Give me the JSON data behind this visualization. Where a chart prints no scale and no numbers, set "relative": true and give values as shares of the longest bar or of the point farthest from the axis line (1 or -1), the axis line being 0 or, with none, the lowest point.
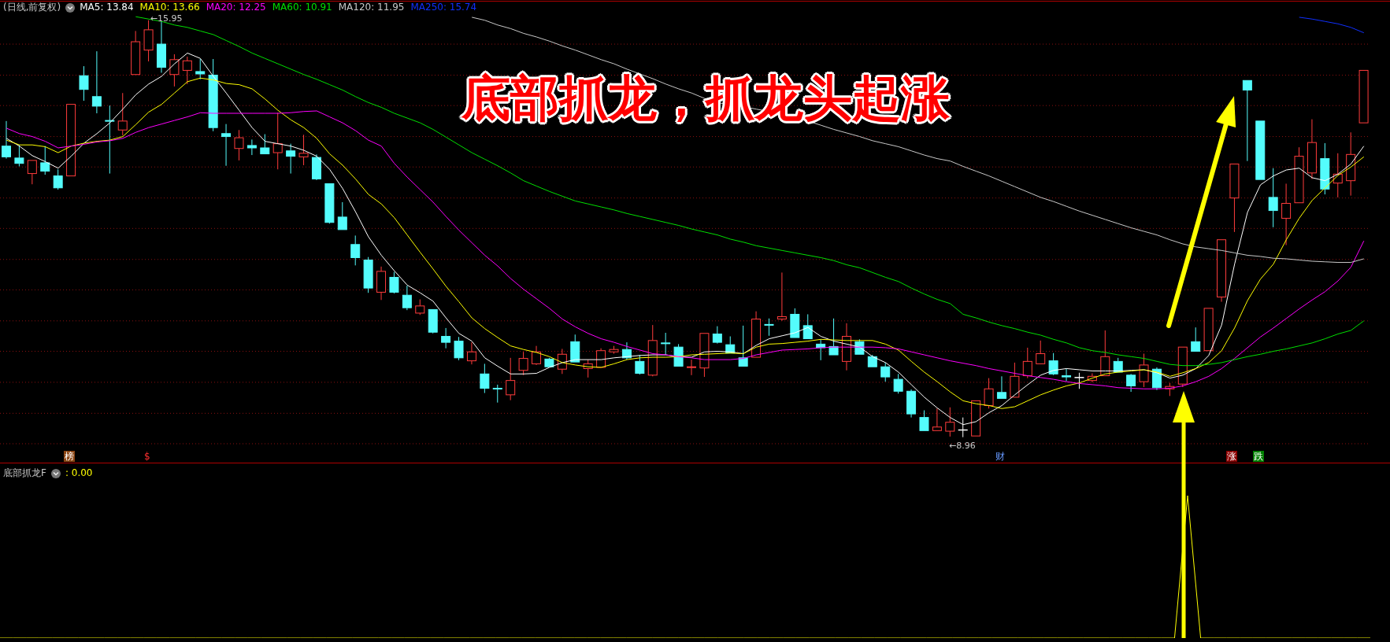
{
  "chart_data": [
    {
      "type": "candlestick",
      "title": "(日线,前复权)",
      "legend": "top left",
      "grid": "y",
      "categories": [
        null,
        null,
        null,
        null,
        null,
        null,
        null,
        null,
        null,
        null,
        null,
        null,
        null,
        null,
        null,
        null,
        null,
        null,
        null,
        null,
        null,
        null,
        null,
        null,
        null,
        null,
        null,
        null,
        null,
        null,
        null,
        null,
        null,
        null,
        null,
        null,
        null,
        null,
        null,
        null,
        null,
        null,
        null,
        null,
        null,
        null,
        null,
        null,
        null,
        null,
        null,
        null,
        null,
        null,
        null,
        null,
        null,
        null,
        null,
        null,
        null,
        null,
        null,
        null,
        null,
        null,
        null,
        null,
        null,
        null,
        null,
        null,
        null,
        null,
        null,
        null,
        null,
        null,
        null,
        null,
        null,
        null,
        null,
        null,
        null,
        null,
        null,
        null,
        null,
        null,
        null,
        null,
        null,
        null,
        null,
        null,
        null,
        null,
        null,
        null,
        null,
        null,
        null,
        null,
        null,
        null
      ],
      "ylim": [
        8.52,
        16.25
      ],
      "yticks": [
        {
          "value": 15.55,
          "label": null
        },
        {
          "value": 15.03,
          "label": null
        },
        {
          "value": 14.52,
          "label": null
        },
        {
          "value": 14.0,
          "label": null
        },
        {
          "value": 13.49,
          "label": null
        },
        {
          "value": 12.97,
          "label": null
        },
        {
          "value": 12.46,
          "label": null
        },
        {
          "value": 11.94,
          "label": null
        },
        {
          "value": 11.43,
          "label": null
        },
        {
          "value": 10.91,
          "label": null
        },
        {
          "value": 10.4,
          "label": null
        },
        {
          "value": 9.88,
          "label": null
        },
        {
          "value": 9.36,
          "label": null
        },
        {
          "value": 8.85,
          "label": null
        }
      ],
      "ohlc": [
        [
          13.84,
          14.26,
          13.63,
          13.66
        ],
        [
          13.64,
          13.86,
          13.5,
          13.55
        ],
        [
          13.38,
          13.6,
          13.2,
          13.6
        ],
        [
          13.56,
          13.84,
          13.36,
          13.42
        ],
        [
          13.34,
          13.45,
          13.11,
          13.14
        ],
        [
          13.34,
          14.54,
          13.34,
          14.54
        ],
        [
          15.02,
          15.18,
          14.6,
          14.79
        ],
        [
          14.67,
          15.43,
          14.39,
          14.51
        ],
        [
          14.27,
          14.52,
          13.38,
          14.26
        ],
        [
          14.11,
          14.73,
          14.02,
          14.26
        ],
        [
          15.04,
          15.77,
          15.04,
          15.59
        ],
        [
          15.45,
          15.95,
          15.26,
          15.79
        ],
        [
          15.55,
          15.93,
          15.07,
          15.16
        ],
        [
          15.04,
          15.38,
          14.84,
          15.29
        ],
        [
          15.11,
          15.34,
          14.88,
          15.27
        ],
        [
          15.09,
          15.3,
          14.96,
          15.05
        ],
        [
          15.03,
          15.3,
          14.09,
          14.15
        ],
        [
          14.05,
          14.21,
          13.51,
          14.0
        ],
        [
          13.8,
          14.11,
          13.6,
          13.98
        ],
        [
          13.85,
          13.95,
          13.69,
          13.81
        ],
        [
          13.81,
          14.04,
          13.7,
          13.71
        ],
        [
          13.73,
          14.4,
          13.45,
          13.88
        ],
        [
          13.76,
          13.88,
          13.38,
          13.67
        ],
        [
          13.66,
          14.03,
          13.52,
          13.72
        ],
        [
          13.65,
          13.7,
          13.27,
          13.29
        ],
        [
          13.21,
          13.22,
          12.54,
          12.56
        ],
        [
          12.65,
          12.9,
          12.44,
          12.44
        ],
        [
          12.19,
          12.34,
          11.84,
          11.97
        ],
        [
          11.93,
          11.98,
          11.38,
          11.46
        ],
        [
          11.39,
          11.82,
          11.26,
          11.74
        ],
        [
          11.64,
          11.73,
          11.37,
          11.39
        ],
        [
          11.34,
          11.5,
          11.09,
          11.13
        ],
        [
          11.04,
          11.27,
          11.01,
          11.16
        ],
        [
          11.1,
          11.11,
          10.7,
          10.72
        ],
        [
          10.65,
          10.79,
          10.45,
          10.55
        ],
        [
          10.57,
          10.64,
          10.25,
          10.29
        ],
        [
          10.24,
          10.55,
          10.18,
          10.39
        ],
        [
          10.02,
          10.19,
          9.7,
          9.78
        ],
        [
          9.78,
          9.84,
          9.54,
          9.77
        ],
        [
          9.67,
          10.29,
          9.58,
          9.91
        ],
        [
          10.08,
          10.39,
          10.0,
          10.28
        ],
        [
          10.19,
          10.49,
          10.17,
          10.39
        ],
        [
          10.27,
          10.29,
          10.13,
          10.14
        ],
        [
          10.1,
          10.44,
          10.02,
          10.35
        ],
        [
          10.56,
          10.68,
          10.21,
          10.22
        ],
        [
          10.11,
          10.26,
          9.96,
          10.19
        ],
        [
          10.13,
          10.45,
          10.12,
          10.41
        ],
        [
          10.39,
          10.49,
          10.36,
          10.43
        ],
        [
          10.43,
          10.55,
          10.26,
          10.29
        ],
        [
          10.23,
          10.34,
          10.01,
          10.03
        ],
        [
          10.0,
          10.84,
          9.98,
          10.58
        ],
        [
          10.54,
          10.71,
          10.34,
          10.53
        ],
        [
          10.47,
          10.52,
          10.14,
          10.15
        ],
        [
          10.13,
          10.26,
          10.0,
          10.14
        ],
        [
          10.12,
          10.7,
          9.97,
          10.7
        ],
        [
          10.69,
          10.82,
          10.53,
          10.55
        ],
        [
          10.51,
          10.65,
          10.36,
          10.37
        ],
        [
          10.29,
          10.83,
          10.15,
          10.15
        ],
        [
          10.3,
          11.07,
          10.29,
          10.94
        ],
        [
          10.85,
          10.95,
          10.66,
          10.84
        ],
        [
          10.94,
          11.72,
          10.91,
          10.98
        ],
        [
          11.02,
          11.12,
          10.63,
          10.63
        ],
        [
          10.83,
          11.02,
          10.6,
          10.61
        ],
        [
          10.52,
          10.6,
          10.25,
          10.46
        ],
        [
          10.48,
          10.95,
          10.34,
          10.34
        ],
        [
          10.23,
          10.87,
          10.08,
          10.65
        ],
        [
          10.56,
          10.6,
          10.34,
          10.35
        ],
        [
          10.31,
          10.34,
          10.13,
          10.14
        ],
        [
          10.14,
          10.21,
          9.89,
          9.97
        ],
        [
          9.93,
          10.02,
          9.69,
          9.73
        ],
        [
          9.73,
          9.76,
          9.29,
          9.35
        ],
        [
          9.29,
          9.41,
          9.06,
          9.07
        ],
        [
          9.07,
          9.44,
          9.06,
          9.13
        ],
        [
          9.06,
          9.46,
          8.97,
          9.21
        ],
        [
          9.08,
          9.29,
          8.96,
          9.08
        ],
        [
          8.98,
          9.58,
          8.97,
          9.57
        ],
        [
          9.49,
          9.95,
          9.44,
          9.77
        ],
        [
          9.71,
          9.98,
          9.6,
          9.61
        ],
        [
          9.63,
          10.21,
          9.62,
          9.98
        ],
        [
          9.99,
          10.46,
          9.95,
          10.23
        ],
        [
          10.19,
          10.58,
          10.18,
          10.36
        ],
        [
          10.24,
          10.37,
          10.0,
          10.02
        ],
        [
          9.99,
          10.11,
          9.9,
          9.97
        ],
        [
          9.96,
          10.04,
          9.77,
          9.96
        ],
        [
          9.91,
          10.03,
          9.88,
          9.98
        ],
        [
          9.99,
          10.75,
          9.98,
          10.31
        ],
        [
          10.23,
          10.29,
          10.04,
          10.05
        ],
        [
          10.0,
          10.02,
          9.72,
          9.82
        ],
        [
          9.89,
          10.36,
          9.8,
          10.17
        ],
        [
          10.1,
          10.13,
          9.75,
          9.79
        ],
        [
          9.77,
          9.87,
          9.65,
          9.81
        ],
        [
          9.85,
          10.48,
          9.8,
          10.47
        ],
        [
          10.56,
          10.8,
          10.39,
          10.4
        ],
        [
          10.41,
          11.12,
          10.4,
          11.12
        ],
        [
          11.31,
          12.28,
          11.23,
          12.27
        ],
        [
          12.97,
          13.54,
          12.4,
          13.54
        ],
        [
          14.94,
          14.94,
          13.59,
          14.78
        ],
        [
          14.26,
          14.26,
          13.28,
          13.28
        ],
        [
          12.98,
          13.47,
          12.48,
          12.76
        ],
        [
          12.63,
          13.21,
          12.18,
          12.88
        ],
        [
          12.89,
          13.82,
          12.88,
          13.67
        ],
        [
          13.39,
          14.29,
          13.29,
          13.9
        ],
        [
          13.63,
          13.89,
          13.03,
          13.12
        ],
        [
          13.22,
          13.72,
          12.98,
          13.37
        ],
        [
          13.26,
          14.07,
          13.01,
          13.7
        ],
        [
          14.23,
          15.11,
          14.23,
          15.11
        ]
      ],
      "colors": [
        "#54fcfc",
        "#54fcfc",
        "#ff3c3c",
        "#54fcfc",
        "#54fcfc",
        "#ff3c3c",
        "#54fcfc",
        "#54fcfc",
        "#54fcfc",
        "#ff3c3c",
        "#ff3c3c",
        "#ff3c3c",
        "#54fcfc",
        "#ff3c3c",
        "#ff3c3c",
        "#54fcfc",
        "#54fcfc",
        "#54fcfc",
        "#ff3c3c",
        "#54fcfc",
        "#54fcfc",
        "#ff3c3c",
        "#54fcfc",
        "#ff3c3c",
        "#54fcfc",
        "#54fcfc",
        "#54fcfc",
        "#54fcfc",
        "#54fcfc",
        "#ff3c3c",
        "#54fcfc",
        "#54fcfc",
        "#ff3c3c",
        "#54fcfc",
        "#54fcfc",
        "#54fcfc",
        "#ff3c3c",
        "#54fcfc",
        "#54fcfc",
        "#ff3c3c",
        "#ff3c3c",
        "#ff3c3c",
        "#54fcfc",
        "#ff3c3c",
        "#54fcfc",
        "#ff3c3c",
        "#ff3c3c",
        "#ff3c3c",
        "#54fcfc",
        "#54fcfc",
        "#ff3c3c",
        "#54fcfc",
        "#54fcfc",
        "#ff3c3c",
        "#ff3c3c",
        "#54fcfc",
        "#54fcfc",
        "#54fcfc",
        "#ff3c3c",
        "#54fcfc",
        "#ff3c3c",
        "#54fcfc",
        "#54fcfc",
        "#54fcfc",
        "#54fcfc",
        "#ff3c3c",
        "#54fcfc",
        "#54fcfc",
        "#54fcfc",
        "#54fcfc",
        "#54fcfc",
        "#54fcfc",
        "#ff3c3c",
        "#ff3c3c",
        "#ffffff",
        "#ff3c3c",
        "#ff3c3c",
        "#54fcfc",
        "#ff3c3c",
        "#ff3c3c",
        "#ff3c3c",
        "#54fcfc",
        "#54fcfc",
        "#ffffff",
        "#ff3c3c",
        "#ff3c3c",
        "#54fcfc",
        "#54fcfc",
        "#ff3c3c",
        "#54fcfc",
        "#ff3c3c",
        "#ff3c3c",
        "#54fcfc",
        "#ff3c3c",
        "#ff3c3c",
        "#ff3c3c",
        "#54fcfc",
        "#54fcfc",
        "#54fcfc",
        "#ff3c3c",
        "#ff3c3c",
        "#ff3c3c",
        "#54fcfc",
        "#ff3c3c",
        "#ff3c3c",
        "#ff3c3c"
      ],
      "series": [
        {
          "name": "MA5: 13.84",
          "type": "line",
          "color": "#ffffff",
          "values": [
            13.97,
            13.84,
            13.68,
            13.58,
            13.47,
            13.67,
            13.89,
            14.05,
            14.23,
            14.46,
            14.7,
            14.88,
            15.01,
            15.22,
            15.4,
            15.31,
            15.01,
            14.73,
            14.44,
            14.15,
            13.92,
            13.88,
            13.84,
            13.77,
            13.67,
            13.45,
            13.13,
            12.74,
            12.32,
            12.01,
            11.75,
            11.51,
            11.38,
            11.24,
            10.96,
            10.7,
            10.57,
            10.29,
            10.15,
            10.02,
            10.02,
            10.03,
            10.13,
            10.21,
            10.26,
            10.26,
            10.26,
            10.29,
            10.31,
            10.33,
            10.34,
            10.34,
            10.31,
            10.3,
            10.39,
            10.4,
            10.39,
            10.36,
            10.5,
            10.61,
            10.66,
            10.71,
            10.8,
            10.65,
            10.57,
            10.52,
            10.47,
            10.31,
            10.21,
            10.05,
            9.84,
            9.63,
            9.45,
            9.29,
            9.17,
            9.22,
            9.37,
            9.49,
            9.67,
            9.84,
            10.0,
            10.08,
            10.11,
            10.09,
            10.07,
            10.07,
            10.07,
            10.08,
            10.09,
            10.04,
            9.95,
            10.0,
            10.11,
            10.33,
            10.84,
            11.86,
            12.73,
            13.19,
            13.34,
            13.44,
            13.47,
            13.31,
            13.26,
            13.37,
            13.54,
            13.84
          ]
        },
        {
          "name": "MA10: 13.66",
          "type": "line",
          "color": "#ffff00",
          "values": [
            13.94,
            13.86,
            13.86,
            13.83,
            13.73,
            13.84,
            13.89,
            13.92,
            13.94,
            14.0,
            14.2,
            14.41,
            14.54,
            14.73,
            14.92,
            14.98,
            14.95,
            14.89,
            14.87,
            14.8,
            14.63,
            14.44,
            14.28,
            14.15,
            13.97,
            13.71,
            13.52,
            13.29,
            13.03,
            12.87,
            12.64,
            12.35,
            12.06,
            11.78,
            11.49,
            11.23,
            10.96,
            10.78,
            10.63,
            10.49,
            10.43,
            10.38,
            10.31,
            10.21,
            10.17,
            10.14,
            10.13,
            10.19,
            10.26,
            10.29,
            10.3,
            10.3,
            10.31,
            10.34,
            10.35,
            10.36,
            10.37,
            10.36,
            10.47,
            10.52,
            10.53,
            10.55,
            10.57,
            10.6,
            10.59,
            10.58,
            10.58,
            10.58,
            10.52,
            10.42,
            10.23,
            10.05,
            9.89,
            9.72,
            9.57,
            9.52,
            9.49,
            9.44,
            9.47,
            9.57,
            9.67,
            9.75,
            9.82,
            9.87,
            9.95,
            10.02,
            10.05,
            10.07,
            10.09,
            10.05,
            9.98,
            10.04,
            10.11,
            10.21,
            10.41,
            10.79,
            11.25,
            11.61,
            11.86,
            12.27,
            12.63,
            12.93,
            13.14,
            13.35,
            13.49,
            13.66
          ]
        },
        {
          "name": "MA20: 12.25",
          "type": "line",
          "color": "#ff00ff",
          "values": [
            14.14,
            14.05,
            14.0,
            13.92,
            13.81,
            13.84,
            13.87,
            13.91,
            13.93,
            13.97,
            14.07,
            14.15,
            14.21,
            14.27,
            14.33,
            14.4,
            14.39,
            14.39,
            14.39,
            14.39,
            14.39,
            14.39,
            14.4,
            14.42,
            14.43,
            14.33,
            14.23,
            14.1,
            13.94,
            13.84,
            13.55,
            13.32,
            13.11,
            12.9,
            12.66,
            12.43,
            12.22,
            12.01,
            11.83,
            11.62,
            11.44,
            11.28,
            11.12,
            10.94,
            10.81,
            10.7,
            10.61,
            10.55,
            10.48,
            10.42,
            10.36,
            10.34,
            10.31,
            10.29,
            10.26,
            10.26,
            10.26,
            10.28,
            10.34,
            10.38,
            10.42,
            10.43,
            10.44,
            10.46,
            10.47,
            10.47,
            10.47,
            10.47,
            10.46,
            10.44,
            10.39,
            10.34,
            10.29,
            10.24,
            10.2,
            10.16,
            10.11,
            10.07,
            10.03,
            9.99,
            9.96,
            9.93,
            9.89,
            9.86,
            9.84,
            9.82,
            9.79,
            9.78,
            9.77,
            9.77,
            9.78,
            9.82,
            9.89,
            9.98,
            10.11,
            10.28,
            10.46,
            10.64,
            10.79,
            10.95,
            11.11,
            11.26,
            11.4,
            11.58,
            11.81,
            12.25
          ]
        },
        {
          "name": "MA60: 10.91",
          "type": "line",
          "color": "#00e000",
          "values": [
            null,
            null,
            null,
            null,
            null,
            null,
            null,
            null,
            null,
            null,
            16.01,
            15.97,
            15.93,
            15.87,
            15.83,
            15.77,
            15.71,
            15.61,
            15.51,
            15.4,
            15.31,
            15.22,
            15.13,
            15.04,
            14.96,
            14.87,
            14.78,
            14.67,
            14.57,
            14.49,
            14.39,
            14.31,
            14.23,
            14.12,
            13.99,
            13.86,
            13.73,
            13.62,
            13.51,
            13.39,
            13.26,
            13.17,
            13.08,
            13.0,
            12.92,
            12.87,
            12.82,
            12.77,
            12.71,
            12.66,
            12.61,
            12.56,
            12.51,
            12.45,
            12.4,
            12.35,
            12.28,
            12.23,
            12.17,
            12.13,
            12.09,
            12.05,
            12.01,
            11.97,
            11.92,
            11.85,
            11.8,
            11.72,
            11.64,
            11.57,
            11.46,
            11.36,
            11.27,
            11.2,
            11.02,
            10.96,
            10.89,
            10.83,
            10.78,
            10.72,
            10.67,
            10.6,
            10.54,
            10.46,
            10.41,
            10.38,
            10.34,
            10.31,
            10.28,
            10.23,
            10.18,
            10.16,
            10.16,
            10.18,
            10.21,
            10.26,
            10.31,
            10.35,
            10.4,
            10.44,
            10.49,
            10.54,
            10.61,
            10.69,
            10.75,
            10.91
          ]
        },
        {
          "name": "MA120: 11.95",
          "type": "line",
          "color": "#c8c8c8",
          "values": [
            null,
            null,
            null,
            null,
            null,
            null,
            null,
            null,
            null,
            null,
            null,
            null,
            null,
            null,
            null,
            null,
            null,
            null,
            null,
            null,
            null,
            null,
            null,
            null,
            null,
            null,
            null,
            null,
            null,
            null,
            null,
            null,
            null,
            null,
            null,
            null,
            16.0,
            15.95,
            15.87,
            15.81,
            15.73,
            15.67,
            15.6,
            15.52,
            15.45,
            15.37,
            15.29,
            15.22,
            15.13,
            15.05,
            14.97,
            14.88,
            14.8,
            14.73,
            14.64,
            14.57,
            14.53,
            14.5,
            14.46,
            14.42,
            14.37,
            14.32,
            14.26,
            14.19,
            14.12,
            14.06,
            14.0,
            13.93,
            13.88,
            13.83,
            13.76,
            13.69,
            13.63,
            13.59,
            13.5,
            13.42,
            13.34,
            13.25,
            13.16,
            13.07,
            12.98,
            12.91,
            12.83,
            12.75,
            12.68,
            12.61,
            12.54,
            12.47,
            12.41,
            12.35,
            12.27,
            12.2,
            12.15,
            12.12,
            12.09,
            12.05,
            12.01,
            11.99,
            11.96,
            11.95,
            11.93,
            11.91,
            11.9,
            11.89,
            11.89,
            11.95
          ]
        },
        {
          "name": "MA250: 15.74",
          "type": "line",
          "color": "#1030ff",
          "values": [
            null,
            null,
            null,
            null,
            null,
            null,
            null,
            null,
            null,
            null,
            null,
            null,
            null,
            null,
            null,
            null,
            null,
            null,
            null,
            null,
            null,
            null,
            null,
            null,
            null,
            null,
            null,
            null,
            null,
            null,
            null,
            null,
            null,
            null,
            null,
            null,
            null,
            null,
            null,
            null,
            null,
            null,
            null,
            null,
            null,
            null,
            null,
            null,
            null,
            null,
            null,
            null,
            null,
            null,
            null,
            null,
            null,
            null,
            null,
            null,
            null,
            null,
            null,
            null,
            null,
            null,
            null,
            null,
            null,
            null,
            null,
            null,
            null,
            null,
            null,
            null,
            null,
            null,
            null,
            null,
            null,
            null,
            null,
            null,
            null,
            null,
            null,
            null,
            null,
            null,
            null,
            null,
            null,
            null,
            null,
            null,
            null,
            null,
            null,
            null,
            16.0,
            15.97,
            15.93,
            15.89,
            15.83,
            15.74
          ]
        }
      ],
      "annotations": [
        "底部抓龙，抓龙头起涨",
        {
          "text": "←15.95",
          "y": 15.95
        },
        {
          "text": "←8.96",
          "y": 8.96
        },
        "榜",
        "$",
        "财",
        "涨",
        "跌"
      ]
    },
    {
      "type": "line",
      "title": "底部抓龙F",
      "relative": true,
      "categories": [
        null,
        null,
        null,
        null,
        null,
        null,
        null,
        null,
        null,
        null,
        null,
        null,
        null,
        null,
        null,
        null,
        null,
        null,
        null,
        null,
        null,
        null,
        null,
        null,
        null,
        null,
        null,
        null,
        null,
        null,
        null,
        null,
        null,
        null,
        null,
        null,
        null,
        null,
        null,
        null,
        null,
        null,
        null,
        null,
        null,
        null,
        null,
        null,
        null,
        null,
        null,
        null,
        null,
        null,
        null,
        null,
        null,
        null,
        null,
        null,
        null,
        null,
        null,
        null,
        null,
        null,
        null,
        null,
        null,
        null,
        null,
        null,
        null,
        null,
        null,
        null,
        null,
        null,
        null,
        null,
        null,
        null,
        null,
        null,
        null,
        null,
        null,
        null,
        null,
        null,
        null,
        null,
        null,
        null,
        null,
        null,
        null,
        null,
        null,
        null,
        null,
        null,
        null,
        null,
        null,
        null
      ],
      "series": [
        {
          "color": "#ffff00",
          "values": [
            0,
            0,
            0,
            0,
            0,
            0,
            0,
            0,
            0,
            0,
            0,
            0,
            0,
            0,
            0,
            0,
            0,
            0,
            0,
            0,
            0,
            0,
            0,
            0,
            0,
            0,
            0,
            0,
            0,
            0,
            0,
            0,
            0,
            0,
            0,
            0,
            0,
            0,
            0,
            0,
            0,
            0,
            0,
            0,
            0,
            0,
            0,
            0,
            0,
            0,
            0,
            0,
            0,
            0,
            0,
            0,
            0,
            0,
            0,
            0,
            0,
            0,
            0,
            0,
            0,
            0,
            0,
            0,
            0,
            0,
            0,
            0,
            0,
            0,
            0,
            0,
            0,
            0,
            0,
            0,
            0,
            0,
            0,
            0,
            0,
            0,
            0,
            0,
            0,
            0,
            0,
            1,
            0,
            0,
            0,
            0,
            0,
            0,
            0,
            0,
            0,
            0,
            0,
            0,
            0,
            0
          ]
        }
      ],
      "annotations": [
        ": 0.00"
      ]
    }
  ]
}
